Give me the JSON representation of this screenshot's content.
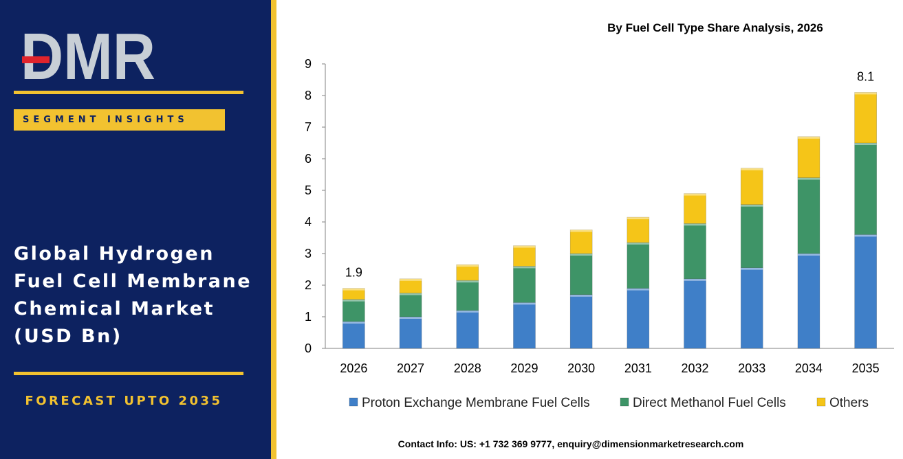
{
  "sidebar": {
    "logo_text": "DMR",
    "badge": "SEGMENT INSIGHTS",
    "title_lines": [
      "Global Hydrogen",
      "Fuel Cell Membrane",
      "Chemical Market",
      "(USD Bn)"
    ],
    "forecast": "FORECAST UPTO 2035"
  },
  "colors": {
    "navy": "#0d2260",
    "gold": "#f2c230",
    "pem": "#3f7fc8",
    "dmfc": "#3e9467",
    "others": "#f5c518"
  },
  "footer": {
    "contact": "Contact Info: US: +1 732 369 9777, enquiry@dimensionmarketresearch.com"
  },
  "chart_data": {
    "type": "bar",
    "stacked": true,
    "title": "By Fuel Cell Type Share Analysis, 2026",
    "categories": [
      "2026",
      "2027",
      "2028",
      "2029",
      "2030",
      "2031",
      "2032",
      "2033",
      "2034",
      "2035"
    ],
    "series": [
      {
        "name": "Proton Exchange Membrane Fuel Cells",
        "color": "#3f7fc8",
        "values": [
          0.85,
          1.0,
          1.2,
          1.45,
          1.7,
          1.9,
          2.2,
          2.55,
          3.0,
          3.6
        ]
      },
      {
        "name": "Direct Methanol Fuel Cells",
        "color": "#3e9467",
        "values": [
          0.7,
          0.75,
          0.95,
          1.15,
          1.3,
          1.45,
          1.75,
          2.0,
          2.4,
          2.9
        ]
      },
      {
        "name": "Others",
        "color": "#f5c518",
        "values": [
          0.35,
          0.45,
          0.5,
          0.65,
          0.75,
          0.8,
          0.95,
          1.15,
          1.3,
          1.6
        ]
      }
    ],
    "total_labels": [
      {
        "category": "2026",
        "text": "1.9"
      },
      {
        "category": "2035",
        "text": "8.1"
      }
    ],
    "ylim": [
      0,
      9
    ],
    "yticks": [
      0,
      1,
      2,
      3,
      4,
      5,
      6,
      7,
      8,
      9
    ],
    "xlabel": "",
    "ylabel": "",
    "grid": false,
    "legend_position": "bottom"
  }
}
